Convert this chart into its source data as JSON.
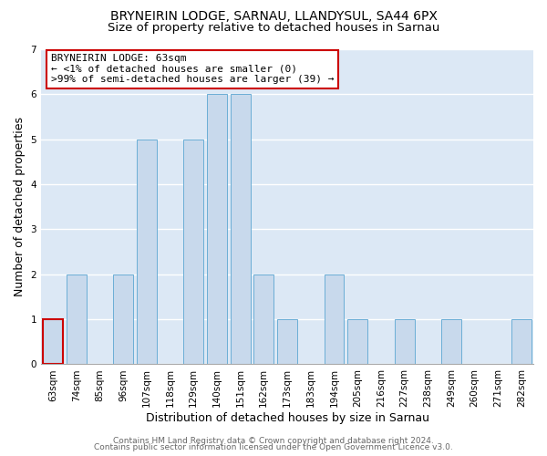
{
  "title": "BRYNEIRIN LODGE, SARNAU, LLANDYSUL, SA44 6PX",
  "subtitle": "Size of property relative to detached houses in Sarnau",
  "xlabel": "Distribution of detached houses by size in Sarnau",
  "ylabel": "Number of detached properties",
  "categories": [
    "63sqm",
    "74sqm",
    "85sqm",
    "96sqm",
    "107sqm",
    "118sqm",
    "129sqm",
    "140sqm",
    "151sqm",
    "162sqm",
    "173sqm",
    "183sqm",
    "194sqm",
    "205sqm",
    "216sqm",
    "227sqm",
    "238sqm",
    "249sqm",
    "260sqm",
    "271sqm",
    "282sqm"
  ],
  "values": [
    1,
    2,
    0,
    2,
    5,
    0,
    5,
    6,
    6,
    2,
    1,
    0,
    2,
    1,
    0,
    1,
    0,
    1,
    0,
    0,
    1
  ],
  "bar_color": "#c8d9ec",
  "bar_edge_color": "#6baed6",
  "highlight_index": 0,
  "highlight_edge_color": "#cc0000",
  "ylim": [
    0,
    7
  ],
  "yticks": [
    0,
    1,
    2,
    3,
    4,
    5,
    6,
    7
  ],
  "annotation_title": "BRYNEIRIN LODGE: 63sqm",
  "annotation_line1": "← <1% of detached houses are smaller (0)",
  "annotation_line2": ">99% of semi-detached houses are larger (39) →",
  "annotation_box_color": "#ffffff",
  "annotation_box_edge": "#cc0000",
  "footer_line1": "Contains HM Land Registry data © Crown copyright and database right 2024.",
  "footer_line2": "Contains public sector information licensed under the Open Government Licence v3.0.",
  "fig_background_color": "#ffffff",
  "plot_bg_color": "#dce8f5",
  "title_fontsize": 10,
  "subtitle_fontsize": 9.5,
  "axis_label_fontsize": 9,
  "tick_fontsize": 7.5,
  "annotation_fontsize": 8,
  "footer_fontsize": 6.5
}
